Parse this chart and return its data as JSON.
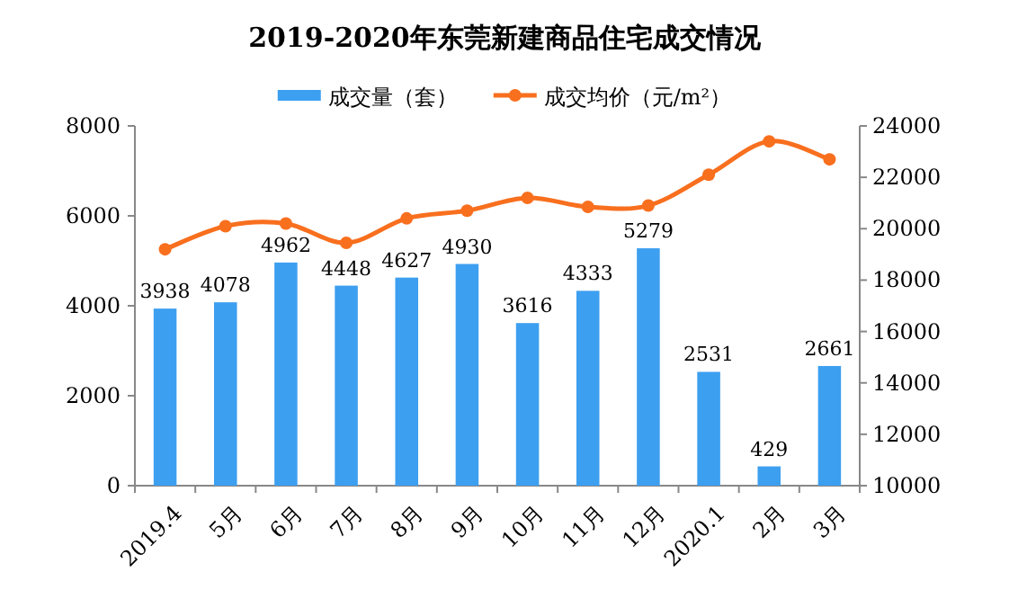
{
  "chart_data": {
    "type": "bar",
    "title": "2019-2020年东莞新建商品住宅成交情况",
    "categories": [
      "2019.4",
      "5月",
      "6月",
      "7月",
      "8月",
      "9月",
      "10月",
      "11月",
      "12月",
      "2020.1",
      "2月",
      "3月"
    ],
    "series": [
      {
        "name": "成交量（套）",
        "color": "#3d9ff0",
        "values": [
          3938,
          4078,
          4962,
          4448,
          4627,
          4930,
          3616,
          4333,
          5279,
          2531,
          429,
          2661
        ],
        "value_labels": [
          "3938",
          "4078",
          "4962",
          "4448",
          "4627",
          "4930",
          "3616",
          "4333",
          "5279",
          "2531",
          "429",
          "2661"
        ]
      },
      {
        "name": "成交均价（元/m²）",
        "type": "line",
        "axis": "y2",
        "color": "#f86f1e",
        "marker": "circle",
        "values": [
          19200,
          20100,
          20200,
          19450,
          20400,
          20700,
          21200,
          20850,
          20900,
          22100,
          23400,
          22700
        ]
      }
    ],
    "ylim": [
      0,
      8000
    ],
    "yticks": [
      0,
      2000,
      4000,
      6000,
      8000
    ],
    "y2lim": [
      10000,
      24000
    ],
    "y2ticks": [
      10000,
      12000,
      14000,
      16000,
      18000,
      20000,
      22000,
      24000
    ],
    "legend": "top",
    "grid": false
  }
}
